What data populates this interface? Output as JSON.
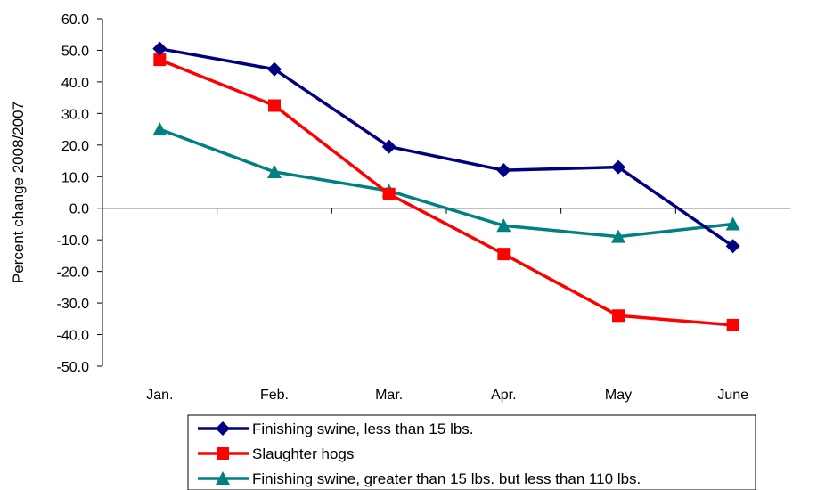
{
  "chart_data": {
    "type": "line",
    "title": "",
    "xlabel": "",
    "ylabel": "Percent change 2008/2007",
    "categories": [
      "Jan.",
      "Feb.",
      "Mar.",
      "Apr.",
      "May",
      "June"
    ],
    "ylim": [
      -50,
      60
    ],
    "yticks": [
      60,
      50,
      40,
      30,
      20,
      10,
      0,
      -10,
      -20,
      -30,
      -40,
      -50
    ],
    "ytick_labels": [
      "60.0",
      "50.0",
      "40.0",
      "30.0",
      "20.0",
      "10.0",
      "0.0",
      "-10.0",
      "-20.0",
      "-30.0",
      "-40.0",
      "-50.0"
    ],
    "grid": false,
    "legend_position": "bottom",
    "series": [
      {
        "name": "Finishing swine, less than 15 lbs.",
        "values": [
          50.5,
          44.0,
          19.5,
          12.0,
          13.0,
          -12.0
        ],
        "color": "#000080",
        "marker": "diamond"
      },
      {
        "name": "Slaughter hogs",
        "values": [
          47.0,
          32.5,
          4.5,
          -14.5,
          -34.0,
          -37.0
        ],
        "color": "#ff0000",
        "marker": "square"
      },
      {
        "name": "Finishing swine, greater than 15 lbs. but less than 110 lbs.",
        "values": [
          25.0,
          11.5,
          5.5,
          -5.5,
          -9.0,
          -5.0
        ],
        "color": "#008080",
        "marker": "triangle"
      }
    ]
  }
}
